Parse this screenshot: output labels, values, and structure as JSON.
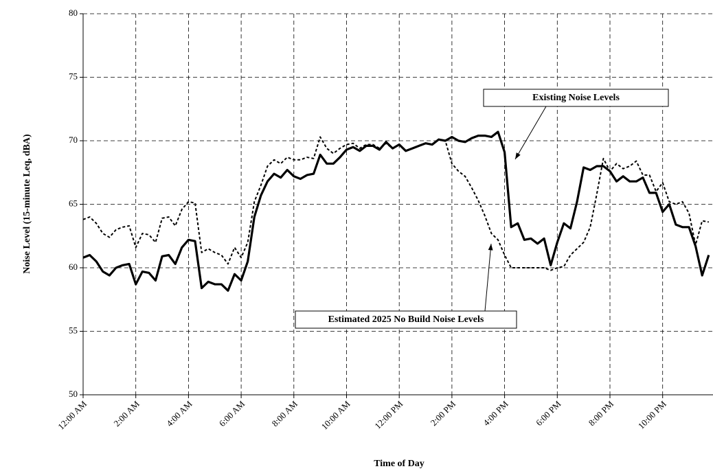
{
  "chart_data": {
    "type": "line",
    "x_label": "Time of Day",
    "y_label": "Noise Level (15-minute Leq, dBA)",
    "categories": [
      "12:00 AM",
      null,
      null,
      null,
      null,
      null,
      null,
      null,
      "2:00 AM",
      null,
      null,
      null,
      null,
      null,
      null,
      null,
      "4:00 AM",
      null,
      null,
      null,
      null,
      null,
      null,
      null,
      "6:00 AM",
      null,
      null,
      null,
      null,
      null,
      null,
      null,
      "8:00 AM",
      null,
      null,
      null,
      null,
      null,
      null,
      null,
      "10:00 AM",
      null,
      null,
      null,
      null,
      null,
      null,
      null,
      "12:00 PM",
      null,
      null,
      null,
      null,
      null,
      null,
      null,
      "2:00 PM",
      null,
      null,
      null,
      null,
      null,
      null,
      null,
      "4:00 PM",
      null,
      null,
      null,
      null,
      null,
      null,
      null,
      "6:00 PM",
      null,
      null,
      null,
      null,
      null,
      null,
      null,
      "8:00 PM",
      null,
      null,
      null,
      null,
      null,
      null,
      null,
      "10:00 PM",
      null,
      null,
      null,
      null,
      null,
      null,
      null
    ],
    "series": [
      {
        "color": "#000000",
        "style": "solid",
        "values": [
          60.8,
          61.0,
          60.5,
          59.7,
          59.4,
          60.0,
          60.2,
          60.3,
          58.7,
          59.7,
          59.6,
          59.0,
          60.9,
          61.0,
          60.3,
          61.6,
          62.2,
          62.1,
          58.4,
          58.9,
          58.7,
          58.7,
          58.2,
          59.5,
          59.0,
          60.5,
          64.0,
          65.7,
          66.8,
          67.4,
          67.1,
          67.7,
          67.2,
          67.0,
          67.3,
          67.4,
          68.9,
          68.2,
          68.2,
          68.7,
          69.3,
          69.5,
          69.2,
          69.6,
          69.6,
          69.3,
          69.9,
          69.4,
          69.7,
          69.2,
          69.4,
          69.6,
          69.8,
          69.7,
          70.1,
          70.0,
          70.3,
          70.0,
          69.9,
          70.2,
          70.4,
          70.4,
          70.3,
          70.7,
          69.1,
          63.2,
          63.5,
          62.2,
          62.3,
          61.9,
          62.3,
          60.2,
          62.0,
          63.5,
          63.1,
          65.2,
          67.9,
          67.7,
          68.0,
          68.0,
          67.6,
          66.8,
          67.2,
          66.8,
          66.8,
          67.1,
          65.9,
          65.9,
          64.4,
          65.0,
          63.4,
          63.2,
          63.2,
          61.7,
          59.4,
          61.0
        ]
      },
      {
        "color": "#000000",
        "style": "dashed",
        "values": [
          63.8,
          64.0,
          63.5,
          62.7,
          62.4,
          63.0,
          63.2,
          63.3,
          61.6,
          62.7,
          62.6,
          62.0,
          63.9,
          64.0,
          63.3,
          64.6,
          65.2,
          65.1,
          61.2,
          61.5,
          61.2,
          61.0,
          60.3,
          61.6,
          60.8,
          62.0,
          65.2,
          66.5,
          68.0,
          68.5,
          68.2,
          68.7,
          68.5,
          68.5,
          68.7,
          68.6,
          70.3,
          69.4,
          69.0,
          69.4,
          69.7,
          69.8,
          69.4,
          69.7,
          69.7,
          69.4,
          69.8,
          69.4,
          69.7,
          69.2,
          69.4,
          69.6,
          69.8,
          69.7,
          70.1,
          70.0,
          68.2,
          67.6,
          67.2,
          66.3,
          65.3,
          64.1,
          62.7,
          62.2,
          61.0,
          60.0,
          60.0,
          60.0,
          60.0,
          60.0,
          60.0,
          59.8,
          60.0,
          60.1,
          61.0,
          61.5,
          62.0,
          63.2,
          65.8,
          68.6,
          67.6,
          68.2,
          67.8,
          68.0,
          68.4,
          67.3,
          67.3,
          66.0,
          66.7,
          65.2,
          65.0,
          65.2,
          64.3,
          61.8,
          63.7,
          63.6
        ]
      }
    ],
    "annotations": [
      {
        "text": "Existing Noise Levels",
        "series": 0
      },
      {
        "text": "Estimated 2025 No Build Noise Levels",
        "series": 1
      }
    ],
    "ylim": [
      50,
      80
    ],
    "yticks": [
      50,
      55,
      60,
      65,
      70,
      75,
      80
    ],
    "grid": true
  }
}
